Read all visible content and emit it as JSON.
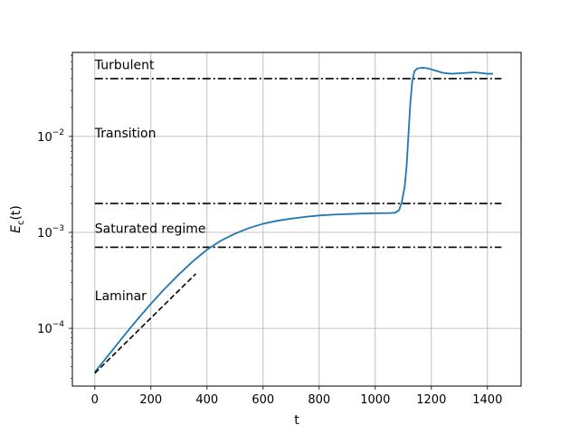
{
  "chart_data": {
    "type": "line",
    "title": "",
    "xlabel": "t",
    "ylabel_base": "E",
    "ylabel_sub": "c",
    "ylabel_suffix": "(t)",
    "yscale": "log",
    "xlim": [
      -80,
      1520
    ],
    "ylim": [
      2.5e-05,
      0.075
    ],
    "xticks": [
      0,
      200,
      400,
      600,
      800,
      1000,
      1200,
      1400
    ],
    "yticks": [
      {
        "value": 0.0001,
        "base": "10",
        "exp": "−4"
      },
      {
        "value": 0.001,
        "base": "10",
        "exp": "−3"
      },
      {
        "value": 0.01,
        "base": "10",
        "exp": "−2"
      }
    ],
    "grid": true,
    "series": [
      {
        "color": "#1f77b4",
        "style": "solid",
        "x": [
          0,
          50,
          100,
          150,
          200,
          250,
          300,
          350,
          400,
          450,
          500,
          550,
          600,
          650,
          700,
          750,
          800,
          850,
          900,
          950,
          1000,
          1050,
          1070,
          1085,
          1095,
          1105,
          1112,
          1118,
          1125,
          1132,
          1140,
          1150,
          1170,
          1190,
          1210,
          1240,
          1270,
          1300,
          1330,
          1350,
          1370,
          1400,
          1420
        ],
        "y": [
          3.5e-05,
          5.3e-05,
          8.1e-05,
          0.000122,
          0.00018,
          0.00026,
          0.000365,
          0.0005,
          0.00066,
          0.00082,
          0.00097,
          0.00111,
          0.00123,
          0.00132,
          0.00139,
          0.00145,
          0.0015,
          0.00153,
          0.00155,
          0.00157,
          0.00158,
          0.00159,
          0.0016,
          0.0017,
          0.0021,
          0.003,
          0.005,
          0.01,
          0.022,
          0.038,
          0.048,
          0.051,
          0.052,
          0.051,
          0.049,
          0.046,
          0.045,
          0.0455,
          0.046,
          0.0465,
          0.046,
          0.045,
          0.045
        ]
      },
      {
        "color": "#000000",
        "style": "dashed",
        "x": [
          0,
          360
        ],
        "y": [
          3.4e-05,
          0.00037
        ]
      }
    ],
    "thresholds": [
      {
        "value": 0.04,
        "x": [
          0,
          1450
        ]
      },
      {
        "value": 0.002,
        "x": [
          0,
          1450
        ]
      },
      {
        "value": 0.0007,
        "x": [
          0,
          1450
        ]
      }
    ],
    "annotations": [
      {
        "text": "Turbulent",
        "x": 0,
        "y": 0.05
      },
      {
        "text": "Transition",
        "x": 0,
        "y": 0.0098
      },
      {
        "text": "Saturated regime",
        "x": 0,
        "y": 0.00099
      },
      {
        "text": "Laminar",
        "x": 0,
        "y": 0.000196
      }
    ]
  }
}
